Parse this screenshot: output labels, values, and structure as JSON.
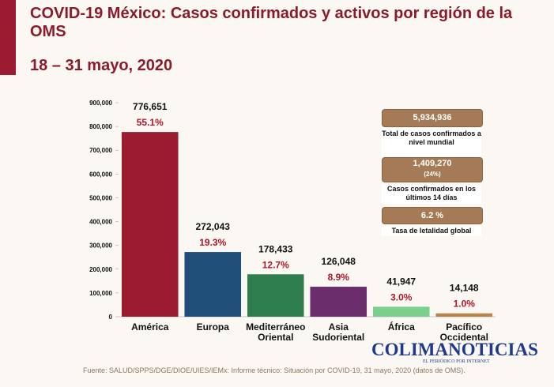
{
  "title": "COVID-19 México: Casos confirmados y activos por región de la OMS",
  "subtitle": "18 – 31 mayo, 2020",
  "chart_data": {
    "type": "bar",
    "categories": [
      "América",
      "Europa",
      "Mediterráneo Oriental",
      "Asia Sudoriental",
      "África",
      "Pacífico Occidental"
    ],
    "values": [
      776651,
      272043,
      178433,
      126048,
      41947,
      14148
    ],
    "value_labels": [
      "776,651",
      "272,043",
      "178,433",
      "126,048",
      "41,947",
      "14,148"
    ],
    "percent_labels": [
      "55.1%",
      "19.3%",
      "12.7%",
      "8.9%",
      "3.0%",
      "1.0%"
    ],
    "colors": [
      "#9b1b30",
      "#1f4e79",
      "#2e7d4f",
      "#6b2d6b",
      "#7ccf8a",
      "#b8864b"
    ],
    "ylim": [
      0,
      900000
    ],
    "yticks": [
      0,
      {
        "value": 100000,
        "label": "100,000"
      },
      {
        "value": 200000,
        "label": "200,000"
      },
      {
        "value": 300000,
        "label": "300,000"
      },
      {
        "value": 400000,
        "label": "400,000"
      },
      {
        "value": 500000,
        "label": "500,000"
      },
      {
        "value": 600000,
        "label": "600,000"
      },
      {
        "value": 700000,
        "label": "700,000"
      },
      {
        "value": 800000,
        "label": "800,000"
      },
      {
        "value": 900000,
        "label": "900,000"
      }
    ],
    "grid": false
  },
  "summary": {
    "total": "5,934,936",
    "total_label": "Total de casos confirmados a nivel mundial",
    "recent": "1,409,270",
    "recent_share": "(24%)",
    "recent_label": "Casos confirmados en los últimos 14 días",
    "lethality": "6.2 %",
    "lethality_label": "Tasa de letalidad global"
  },
  "source": "Fuente: SALUD/SPPS/DGE/DIOE/UIES/IEMx: Informe técnico: Situación por COVID-19, 31 mayo, 2020 (datos de OMS).",
  "watermark": {
    "brand": "COLIMANOTICIAS",
    "tagline": "EL PERIÓDICO POR INTERNET"
  }
}
